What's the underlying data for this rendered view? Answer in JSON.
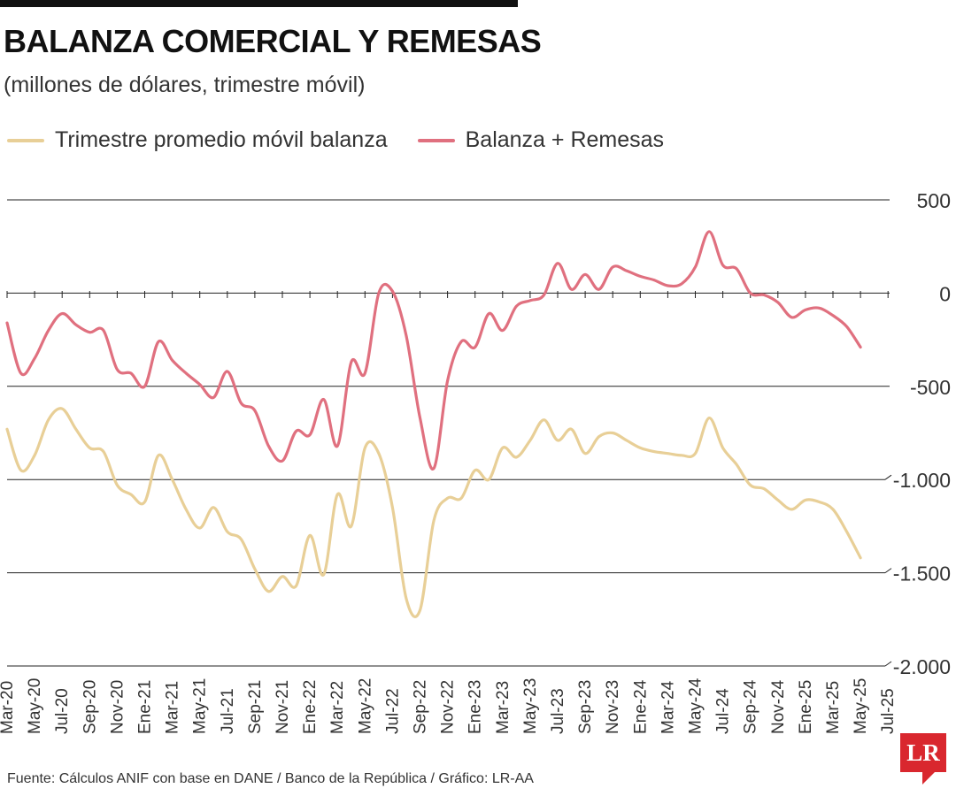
{
  "header": {
    "title": "BALANZA COMERCIAL Y REMESAS",
    "subtitle": "(millones de dólares, trimestre móvil)"
  },
  "legend": {
    "items": [
      {
        "label": "Trimestre promedio móvil balanza",
        "color": "#e8cf97"
      },
      {
        "label": "Balanza + Remesas",
        "color": "#e0707f"
      }
    ]
  },
  "footer": {
    "source": "Fuente: Cálculos ANIF con base en DANE / Banco de la República / Gráfico: LR-AA",
    "logo_text": "LR"
  },
  "chart_data": {
    "type": "line",
    "ylim": [
      -2000,
      500
    ],
    "yticks": [
      500,
      0,
      -500,
      -1000,
      -1500,
      -2000
    ],
    "ytick_labels": [
      "500",
      "0",
      "-500",
      "-1.000",
      "-1.500",
      "-2.000"
    ],
    "grid": true,
    "legend_position": "top-left",
    "x": [
      "Mar-20",
      "Abr-20",
      "May-20",
      "Jun-20",
      "Jul-20",
      "Ago-20",
      "Sep-20",
      "Oct-20",
      "Nov-20",
      "Dic-20",
      "Ene-21",
      "Feb-21",
      "Mar-21",
      "Abr-21",
      "May-21",
      "Jun-21",
      "Jul-21",
      "Ago-21",
      "Sep-21",
      "Oct-21",
      "Nov-21",
      "Dic-21",
      "Ene-22",
      "Feb-22",
      "Mar-22",
      "Abr-22",
      "May-22",
      "Jun-22",
      "Jul-22",
      "Ago-22",
      "Sep-22",
      "Oct-22",
      "Nov-22",
      "Dic-22",
      "Ene-23",
      "Feb-23",
      "Mar-23",
      "Abr-23",
      "May-23",
      "Jun-23",
      "Jul-23",
      "Ago-23",
      "Sep-23",
      "Oct-23",
      "Nov-23",
      "Dic-23",
      "Ene-24",
      "Feb-24",
      "Mar-24",
      "Abr-24",
      "May-24",
      "Jun-24",
      "Jul-24",
      "Ago-24",
      "Sep-24",
      "Oct-24",
      "Nov-24",
      "Dic-24",
      "Ene-25",
      "Feb-25",
      "Mar-25",
      "Abr-25",
      "May-25",
      "Jun-25",
      "Jul-25"
    ],
    "x_tick_labels": [
      "Mar-20",
      "May-20",
      "Jul-20",
      "Sep-20",
      "Nov-20",
      "Ene-21",
      "Mar-21",
      "May-21",
      "Jul-21",
      "Sep-21",
      "Nov-21",
      "Ene-22",
      "Mar-22",
      "May-22",
      "Jul-22",
      "Sep-22",
      "Nov-22",
      "Ene-23",
      "Mar-23",
      "May-23",
      "Jul-23",
      "Sep-23",
      "Nov-23",
      "Ene-24",
      "Mar-24",
      "May-24",
      "Jul-24",
      "Sep-24",
      "Nov-24",
      "Ene-25",
      "Mar-25",
      "May-25",
      "Jul-25"
    ],
    "series": [
      {
        "name": "Trimestre promedio móvil balanza",
        "color": "#e8cf97",
        "values": [
          -730,
          -950,
          -870,
          -680,
          -620,
          -730,
          -830,
          -850,
          -1030,
          -1080,
          -1120,
          -870,
          -1000,
          -1160,
          -1260,
          -1150,
          -1280,
          -1320,
          -1480,
          -1600,
          -1520,
          -1570,
          -1300,
          -1510,
          -1080,
          -1250,
          -830,
          -860,
          -1150,
          -1640,
          -1700,
          -1220,
          -1100,
          -1100,
          -950,
          -1000,
          -830,
          -880,
          -790,
          -680,
          -790,
          -730,
          -860,
          -770,
          -750,
          -790,
          -830,
          -850,
          -860,
          -870,
          -860,
          -670,
          -830,
          -920,
          -1030,
          -1050,
          -1110,
          -1160,
          -1110,
          -1120,
          -1160,
          -1280,
          -1420,
          null,
          null
        ]
      },
      {
        "name": "Balanza + Remesas",
        "color": "#e0707f",
        "values": [
          -160,
          -430,
          -350,
          -200,
          -110,
          -170,
          -210,
          -200,
          -410,
          -430,
          -500,
          -260,
          -360,
          -430,
          -490,
          -560,
          -420,
          -590,
          -630,
          -820,
          -900,
          -740,
          -760,
          -570,
          -820,
          -370,
          -430,
          0,
          10,
          -230,
          -670,
          -940,
          -470,
          -260,
          -290,
          -110,
          -200,
          -70,
          -40,
          -10,
          160,
          20,
          100,
          20,
          140,
          120,
          90,
          70,
          40,
          50,
          140,
          330,
          150,
          130,
          0,
          -10,
          -50,
          -130,
          -90,
          -80,
          -120,
          -180,
          -290,
          null,
          null
        ]
      }
    ]
  }
}
